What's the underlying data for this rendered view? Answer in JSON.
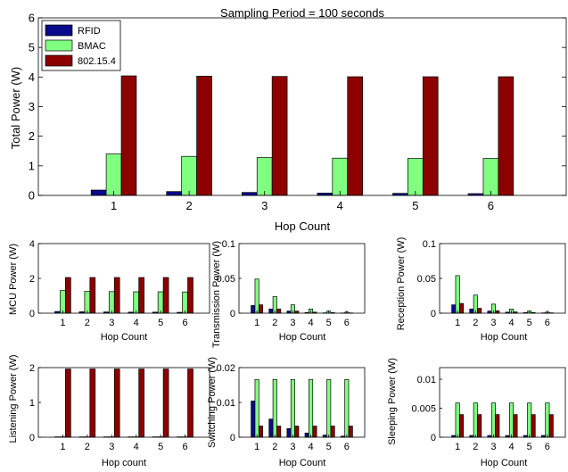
{
  "series_colors": {
    "RFID": "#0a0a8c",
    "BMAC": "#80ff80",
    "802.15.4": "#8c0000"
  },
  "chart_data": [
    {
      "id": "main",
      "type": "bar",
      "title": "Sampling Period = 100 seconds",
      "xlabel": "Hop Count",
      "ylabel": "Total Power (W)",
      "categories": [
        "1",
        "2",
        "3",
        "4",
        "5",
        "6"
      ],
      "ylim": [
        0,
        6
      ],
      "yticks": [
        "0",
        "1",
        "2",
        "3",
        "4",
        "5",
        "6"
      ],
      "yticks_values": [
        0,
        1,
        2,
        3,
        4,
        5,
        6
      ],
      "legend": "top-left",
      "series": [
        {
          "name": "RFID",
          "values": [
            0.18,
            0.13,
            0.1,
            0.08,
            0.07,
            0.06
          ]
        },
        {
          "name": "BMAC",
          "values": [
            1.4,
            1.32,
            1.28,
            1.26,
            1.25,
            1.25
          ]
        },
        {
          "name": "802.15.4",
          "values": [
            4.04,
            4.03,
            4.02,
            4.01,
            4.01,
            4.01
          ]
        }
      ]
    },
    {
      "id": "mcu",
      "type": "bar",
      "xlabel": "Hop Count",
      "ylabel": "MCU Power (W)",
      "categories": [
        "1",
        "2",
        "3",
        "4",
        "5",
        "6"
      ],
      "ylim": [
        0,
        4
      ],
      "yticks": [
        "0",
        "2",
        "4"
      ],
      "yticks_values": [
        0,
        2,
        4
      ],
      "series": [
        {
          "values": [
            0.1,
            0.08,
            0.07,
            0.06,
            0.06,
            0.05
          ]
        },
        {
          "values": [
            1.3,
            1.25,
            1.24,
            1.23,
            1.23,
            1.22
          ]
        },
        {
          "values": [
            2.05,
            2.05,
            2.05,
            2.05,
            2.05,
            2.05
          ]
        }
      ]
    },
    {
      "id": "transmission",
      "type": "bar",
      "xlabel": "Hop Count",
      "ylabel": "Transmission Power (W)",
      "categories": [
        "1",
        "2",
        "3",
        "4",
        "5",
        "6"
      ],
      "ylim": [
        0,
        0.1
      ],
      "yticks": [
        "0",
        "0.05",
        "0.1"
      ],
      "yticks_values": [
        0,
        0.05,
        0.1
      ],
      "series": [
        {
          "values": [
            0.011,
            0.006,
            0.003,
            0.001,
            0.0005,
            0.0003
          ]
        },
        {
          "values": [
            0.049,
            0.024,
            0.012,
            0.006,
            0.003,
            0.0015
          ]
        },
        {
          "values": [
            0.012,
            0.006,
            0.003,
            0.0015,
            0.0008,
            0.0004
          ]
        }
      ]
    },
    {
      "id": "reception",
      "type": "bar",
      "xlabel": "Hop Count",
      "ylabel": "Reception Power (W)",
      "categories": [
        "1",
        "2",
        "3",
        "4",
        "5",
        "6"
      ],
      "ylim": [
        0,
        0.1
      ],
      "yticks": [
        "0",
        "0.05",
        "0.1"
      ],
      "yticks_values": [
        0,
        0.05,
        0.1
      ],
      "series": [
        {
          "values": [
            0.012,
            0.006,
            0.003,
            0.0015,
            0.0008,
            0.0004
          ]
        },
        {
          "values": [
            0.054,
            0.026,
            0.013,
            0.006,
            0.003,
            0.0015
          ]
        },
        {
          "values": [
            0.014,
            0.007,
            0.0035,
            0.0018,
            0.0009,
            0.0005
          ]
        }
      ]
    },
    {
      "id": "listening",
      "type": "bar",
      "xlabel": "Hop count",
      "ylabel": "Listening Power (W)",
      "categories": [
        "1",
        "2",
        "3",
        "4",
        "5",
        "6"
      ],
      "ylim": [
        0,
        2
      ],
      "yticks": [
        "0",
        "1",
        "2"
      ],
      "yticks_values": [
        0,
        1,
        2
      ],
      "series": [
        {
          "values": [
            0.01,
            0.01,
            0.01,
            0.01,
            0.01,
            0.01
          ]
        },
        {
          "values": [
            0.01,
            0.01,
            0.01,
            0.01,
            0.01,
            0.01
          ]
        },
        {
          "values": [
            1.96,
            1.96,
            1.96,
            1.96,
            1.96,
            1.96
          ]
        }
      ]
    },
    {
      "id": "switching",
      "type": "bar",
      "xlabel": "Hop Count",
      "ylabel": "Switching Power (W)",
      "categories": [
        "1",
        "2",
        "3",
        "4",
        "5",
        "6"
      ],
      "ylim": [
        0,
        0.02
      ],
      "yticks": [
        "0",
        "0.01",
        "0.02"
      ],
      "yticks_values": [
        0,
        0.01,
        0.02
      ],
      "series": [
        {
          "values": [
            0.0104,
            0.0052,
            0.0025,
            0.0012,
            0.0006,
            0.0003
          ]
        },
        {
          "values": [
            0.0166,
            0.0166,
            0.0166,
            0.0166,
            0.0166,
            0.0166
          ]
        },
        {
          "values": [
            0.0032,
            0.0032,
            0.0032,
            0.0032,
            0.0032,
            0.0032
          ]
        }
      ]
    },
    {
      "id": "sleeping",
      "type": "bar",
      "xlabel": "Hop Count",
      "ylabel": "Sleeping Power (W)",
      "categories": [
        "1",
        "2",
        "3",
        "4",
        "5",
        "6"
      ],
      "ylim": [
        0,
        0.012
      ],
      "yticks": [
        "0",
        "0.005",
        "0.01"
      ],
      "yticks_values": [
        0,
        0.005,
        0.01
      ],
      "series": [
        {
          "values": [
            0.0003,
            0.0003,
            0.0003,
            0.0003,
            0.0003,
            0.0003
          ]
        },
        {
          "values": [
            0.0059,
            0.0059,
            0.0059,
            0.0059,
            0.0059,
            0.0059
          ]
        },
        {
          "values": [
            0.0039,
            0.0039,
            0.0039,
            0.0039,
            0.0039,
            0.0039
          ]
        }
      ]
    }
  ]
}
